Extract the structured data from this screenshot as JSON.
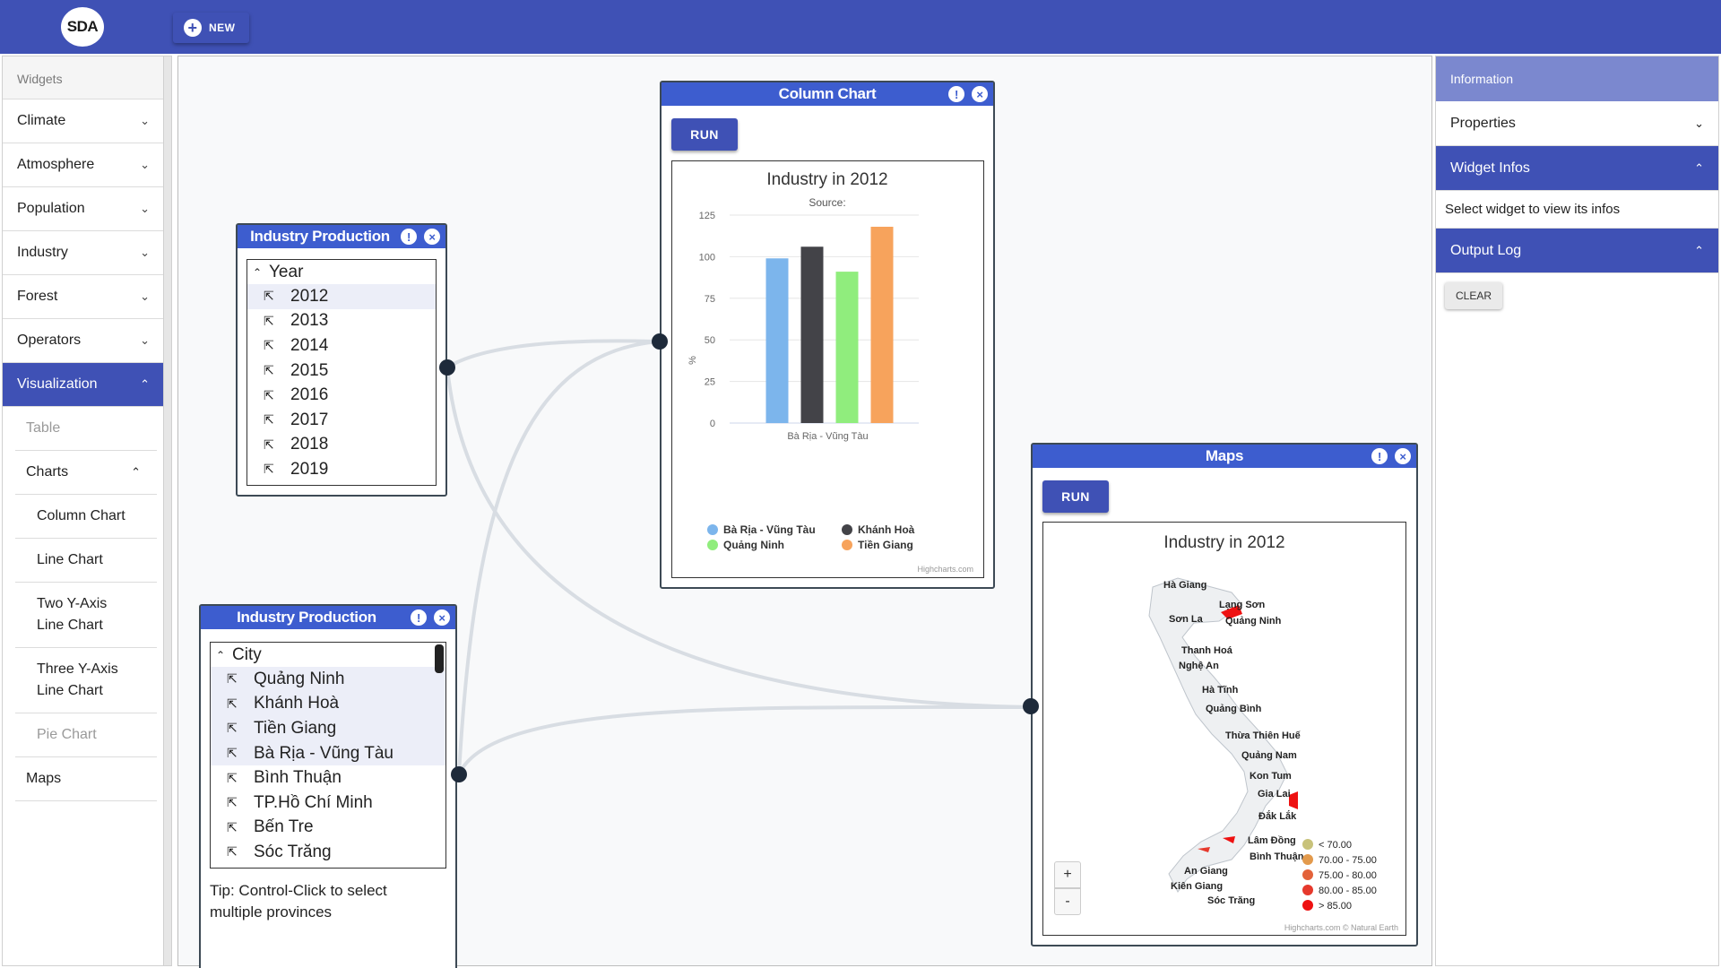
{
  "topbar": {
    "logo": "SDA",
    "new_label": "NEW"
  },
  "sidebar": {
    "header": "Widgets",
    "items": [
      {
        "label": "Climate"
      },
      {
        "label": "Atmosphere"
      },
      {
        "label": "Population"
      },
      {
        "label": "Industry"
      },
      {
        "label": "Forest"
      },
      {
        "label": "Operators"
      },
      {
        "label": "Visualization"
      }
    ],
    "visualization": {
      "table": "Table",
      "charts": "Charts",
      "column_chart": "Column Chart",
      "line_chart": "Line Chart",
      "two_y_axis_1": "Two Y-Axis",
      "two_y_axis_2": "Line Chart",
      "three_y_axis_1": "Three Y-Axis",
      "three_y_axis_2": "Line Chart",
      "pie_chart": "Pie Chart",
      "maps": "Maps"
    }
  },
  "widget_year": {
    "title": "Industry Production",
    "list_header": "Year",
    "items": [
      "2012",
      "2013",
      "2014",
      "2015",
      "2016",
      "2017",
      "2018",
      "2019"
    ],
    "selected": "2012"
  },
  "widget_city": {
    "title": "Industry Production",
    "list_header": "City",
    "items": [
      "Quảng Ninh",
      "Khánh Hoà",
      "Tiền Giang",
      "Bà Rịa - Vũng Tàu",
      "Bình Thuận",
      "TP.Hồ Chí Minh",
      "Bến Tre",
      "Sóc Trăng"
    ],
    "tip": "Tip: Control-Click to select multiple provinces"
  },
  "widget_column": {
    "title": "Column Chart",
    "run_label": "RUN",
    "credit": "Highcharts.com"
  },
  "widget_maps": {
    "title": "Maps",
    "run_label": "RUN",
    "map_title": "Industry in 2012",
    "credit": "Highcharts.com © Natural Earth",
    "zoom_in": "+",
    "zoom_out": "-",
    "places": [
      "Hà Giang",
      "Lạng Sơn",
      "Sơn La",
      "Quảng Ninh",
      "Thanh Hoá",
      "Nghệ An",
      "Hà Tĩnh",
      "Quảng Bình",
      "Thừa Thiên Huế",
      "Quảng Nam",
      "Kon Tum",
      "Gia Lai",
      "Đắk Lắk",
      "Lâm Đồng",
      "Bình Thuận",
      "An Giang",
      "Kiên Giang",
      "Sóc Trăng"
    ],
    "legend": [
      {
        "label": "< 70.00",
        "color": "#c8c27a"
      },
      {
        "label": "70.00 - 75.00",
        "color": "#e39a4c"
      },
      {
        "label": "75.00 - 80.00",
        "color": "#e3623a"
      },
      {
        "label": "80.00 - 85.00",
        "color": "#e6392c"
      },
      {
        "label": "> 85.00",
        "color": "#ee1111"
      }
    ]
  },
  "chart_data": {
    "type": "bar",
    "title": "Industry in 2012",
    "subtitle": "Source:",
    "categories": [
      "Bà Rịa - Vũng Tàu"
    ],
    "xlabel": "",
    "ylabel": "%",
    "ylim": [
      0,
      125
    ],
    "yticks": [
      0,
      25,
      50,
      75,
      100,
      125
    ],
    "grid": true,
    "legend_position": "bottom",
    "series": [
      {
        "name": "Bà Rịa - Vũng Tàu",
        "values": [
          99
        ],
        "color": "#7cb5ec"
      },
      {
        "name": "Khánh Hoà",
        "values": [
          106
        ],
        "color": "#434348"
      },
      {
        "name": "Quảng Ninh",
        "values": [
          91
        ],
        "color": "#90ed7d"
      },
      {
        "name": "Tiền Giang",
        "values": [
          118
        ],
        "color": "#f7a35c"
      }
    ]
  },
  "right_panel": {
    "information": "Information",
    "properties": "Properties",
    "widget_infos": "Widget Infos",
    "widget_infos_text": "Select widget to view its infos",
    "output_log": "Output Log",
    "clear_label": "CLEAR"
  }
}
